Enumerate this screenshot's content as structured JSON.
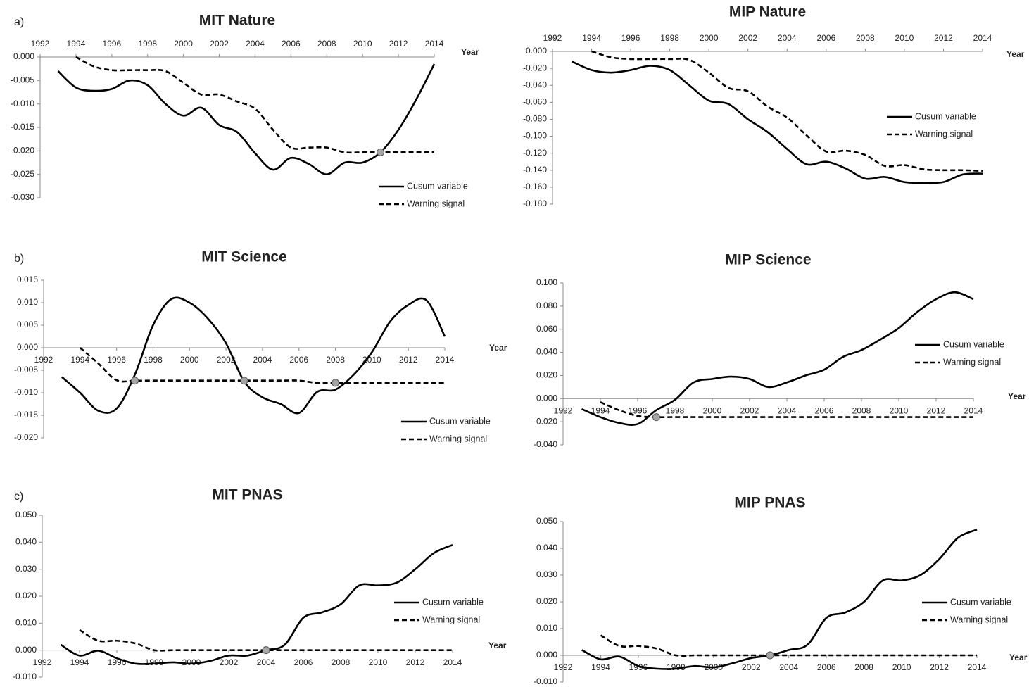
{
  "chart_data": [
    {
      "type": "line",
      "panel_label": "a)",
      "title": "MIT  Nature",
      "x_label": "Year",
      "x": [
        1993,
        1994,
        1995,
        1996,
        1997,
        1998,
        1999,
        2000,
        2001,
        2002,
        2003,
        2004,
        2005,
        2006,
        2007,
        2008,
        2009,
        2010,
        2011,
        2012,
        2013,
        2014
      ],
      "series": [
        {
          "name": "Cusum variable",
          "color": "#000000",
          "linestyle": "solid",
          "values": [
            -0.003,
            -0.0065,
            -0.0072,
            -0.0068,
            -0.005,
            -0.006,
            -0.01,
            -0.0125,
            -0.0108,
            -0.0145,
            -0.016,
            -0.0205,
            -0.024,
            -0.0215,
            -0.0228,
            -0.025,
            -0.0225,
            -0.0225,
            -0.0203,
            -0.0155,
            -0.009,
            -0.0015
          ]
        },
        {
          "name": "Warning signal",
          "color": "#000000",
          "linestyle": "dashed",
          "values": [
            null,
            0.0,
            -0.002,
            -0.0028,
            -0.0028,
            -0.0028,
            -0.003,
            -0.0055,
            -0.008,
            -0.008,
            -0.0095,
            -0.011,
            -0.0155,
            -0.0193,
            -0.0193,
            -0.0193,
            -0.0203,
            -0.0203,
            -0.0203,
            -0.0203,
            -0.0203,
            -0.0203
          ]
        }
      ],
      "markers": {
        "color": "#a6a6a6",
        "x": [
          2011
        ],
        "y": [
          -0.0203
        ]
      },
      "xlim": [
        1992,
        2014
      ],
      "xticks": [
        1992,
        1994,
        1996,
        1998,
        2000,
        2002,
        2004,
        2006,
        2008,
        2010,
        2012,
        2014
      ],
      "ylim": [
        -0.03,
        0
      ],
      "yticks": [
        {
          "value": 0,
          "label": "0.000"
        },
        {
          "value": -0.005,
          "label": "-0.005"
        },
        {
          "value": -0.01,
          "label": "-0.010"
        },
        {
          "value": -0.015,
          "label": "-0.015"
        },
        {
          "value": -0.02,
          "label": "-0.020"
        },
        {
          "value": -0.025,
          "label": "-0.025"
        },
        {
          "value": -0.03,
          "label": "-0.030"
        }
      ]
    },
    {
      "type": "line",
      "title": "MIP Nature",
      "x_label": "Year",
      "x": [
        1993,
        1994,
        1995,
        1996,
        1997,
        1998,
        1999,
        2000,
        2001,
        2002,
        2003,
        2004,
        2005,
        2006,
        2007,
        2008,
        2009,
        2010,
        2011,
        2012,
        2013,
        2014
      ],
      "series": [
        {
          "name": "Cusum variable",
          "color": "#000000",
          "linestyle": "solid",
          "values": [
            -0.012,
            -0.022,
            -0.025,
            -0.022,
            -0.017,
            -0.022,
            -0.04,
            -0.058,
            -0.062,
            -0.08,
            -0.095,
            -0.115,
            -0.133,
            -0.13,
            -0.138,
            -0.15,
            -0.148,
            -0.154,
            -0.155,
            -0.154,
            -0.145,
            -0.144
          ]
        },
        {
          "name": "Warning signal",
          "color": "#000000",
          "linestyle": "dashed",
          "values": [
            null,
            0.0,
            -0.007,
            -0.009,
            -0.009,
            -0.009,
            -0.01,
            -0.025,
            -0.043,
            -0.047,
            -0.065,
            -0.078,
            -0.099,
            -0.118,
            -0.117,
            -0.122,
            -0.135,
            -0.134,
            -0.139,
            -0.14,
            -0.14,
            -0.141
          ]
        }
      ],
      "xlim": [
        1992,
        2014
      ],
      "xticks": [
        1992,
        1994,
        1996,
        1998,
        2000,
        2002,
        2004,
        2006,
        2008,
        2010,
        2012,
        2014
      ],
      "ylim": [
        -0.18,
        0
      ],
      "yticks": [
        {
          "value": 0,
          "label": "0.000"
        },
        {
          "value": -0.02,
          "label": "-0.020"
        },
        {
          "value": -0.04,
          "label": "-0.040"
        },
        {
          "value": -0.06,
          "label": "-0.060"
        },
        {
          "value": -0.08,
          "label": "-0.080"
        },
        {
          "value": -0.1,
          "label": "-0.100"
        },
        {
          "value": -0.12,
          "label": "-0.120"
        },
        {
          "value": -0.14,
          "label": "-0.140"
        },
        {
          "value": -0.16,
          "label": "-0.160"
        },
        {
          "value": -0.18,
          "label": "-0.180"
        }
      ]
    },
    {
      "type": "line",
      "panel_label": "b)",
      "title": "MIT Science",
      "x_label": "Year",
      "x": [
        1993,
        1994,
        1995,
        1996,
        1997,
        1998,
        1999,
        2000,
        2001,
        2002,
        2003,
        2004,
        2005,
        2006,
        2007,
        2008,
        2009,
        2010,
        2011,
        2012,
        2013,
        2014
      ],
      "series": [
        {
          "name": "Cusum variable",
          "color": "#000000",
          "linestyle": "solid",
          "values": [
            -0.0065,
            -0.01,
            -0.014,
            -0.0135,
            -0.006,
            0.005,
            0.0108,
            0.01,
            0.0065,
            0.001,
            -0.0075,
            -0.011,
            -0.0125,
            -0.0145,
            -0.0098,
            -0.0093,
            -0.006,
            -0.001,
            0.0058,
            0.0095,
            0.0105,
            0.0025
          ]
        },
        {
          "name": "Warning signal",
          "color": "#000000",
          "linestyle": "dashed",
          "values": [
            null,
            0.0,
            -0.0035,
            -0.0072,
            -0.0073,
            -0.0073,
            -0.0073,
            -0.0073,
            -0.0073,
            -0.0073,
            -0.0073,
            -0.0073,
            -0.0073,
            -0.0073,
            -0.0078,
            -0.0078,
            -0.0078,
            -0.0078,
            -0.0078,
            -0.0078,
            -0.0078,
            -0.0078
          ]
        }
      ],
      "markers": {
        "color": "#a6a6a6",
        "x": [
          1997,
          2003,
          2008
        ],
        "y": [
          -0.0073,
          -0.0073,
          -0.0078
        ]
      },
      "xlim": [
        1992,
        2014
      ],
      "xticks": [
        1992,
        1994,
        1996,
        1998,
        2000,
        2002,
        2004,
        2006,
        2008,
        2010,
        2012,
        2014
      ],
      "ylim": [
        -0.02,
        0.015
      ],
      "yticks": [
        {
          "value": 0.015,
          "label": "0.015"
        },
        {
          "value": 0.01,
          "label": "0.010"
        },
        {
          "value": 0.005,
          "label": "0.005"
        },
        {
          "value": 0,
          "label": "0.000"
        },
        {
          "value": -0.005,
          "label": "-0.005"
        },
        {
          "value": -0.01,
          "label": "-0.010"
        },
        {
          "value": -0.015,
          "label": "-0.015"
        },
        {
          "value": -0.02,
          "label": "-0.020"
        }
      ]
    },
    {
      "type": "line",
      "title": "MIP Science",
      "x_label": "Year",
      "x": [
        1993,
        1994,
        1995,
        1996,
        1997,
        1998,
        1999,
        2000,
        2001,
        2002,
        2003,
        2004,
        2005,
        2006,
        2007,
        2008,
        2009,
        2010,
        2011,
        2012,
        2013,
        2014
      ],
      "series": [
        {
          "name": "Cusum variable",
          "color": "#000000",
          "linestyle": "solid",
          "values": [
            -0.009,
            -0.016,
            -0.021,
            -0.022,
            -0.01,
            -0.001,
            0.014,
            0.017,
            0.019,
            0.017,
            0.01,
            0.014,
            0.02,
            0.025,
            0.036,
            0.042,
            0.051,
            0.061,
            0.075,
            0.086,
            0.092,
            0.086
          ]
        },
        {
          "name": "Warning signal",
          "color": "#000000",
          "linestyle": "dashed",
          "values": [
            null,
            -0.003,
            -0.01,
            -0.015,
            -0.016,
            -0.016,
            -0.016,
            -0.016,
            -0.016,
            -0.016,
            -0.016,
            -0.016,
            -0.016,
            -0.016,
            -0.016,
            -0.016,
            -0.016,
            -0.016,
            -0.016,
            -0.016,
            -0.016,
            -0.016
          ]
        }
      ],
      "markers": {
        "color": "#a6a6a6",
        "x": [
          1997
        ],
        "y": [
          -0.016
        ]
      },
      "xlim": [
        1992,
        2014
      ],
      "xticks": [
        1992,
        1994,
        1996,
        1998,
        2000,
        2002,
        2004,
        2006,
        2008,
        2010,
        2012,
        2014
      ],
      "ylim": [
        -0.04,
        0.1
      ],
      "yticks": [
        {
          "value": 0.1,
          "label": "0.100"
        },
        {
          "value": 0.08,
          "label": "0.080"
        },
        {
          "value": 0.06,
          "label": "0.060"
        },
        {
          "value": 0.04,
          "label": "0.040"
        },
        {
          "value": 0.02,
          "label": "0.020"
        },
        {
          "value": 0,
          "label": "0.000"
        },
        {
          "value": -0.02,
          "label": "-0.020"
        },
        {
          "value": -0.04,
          "label": "-0.040"
        }
      ]
    },
    {
      "type": "line",
      "panel_label": "c)",
      "title": "MIT PNAS",
      "x_label": "Year",
      "x": [
        1993,
        1994,
        1995,
        1996,
        1997,
        1998,
        1999,
        2000,
        2001,
        2002,
        2003,
        2004,
        2005,
        2006,
        2007,
        2008,
        2009,
        2010,
        2011,
        2012,
        2013,
        2014
      ],
      "series": [
        {
          "name": "Cusum variable",
          "color": "#000000",
          "linestyle": "solid",
          "values": [
            0.002,
            -0.002,
            -0.0002,
            -0.003,
            -0.005,
            -0.005,
            -0.0045,
            -0.005,
            -0.004,
            -0.002,
            -0.002,
            0.0,
            0.002,
            0.012,
            0.014,
            0.017,
            0.024,
            0.024,
            0.025,
            0.03,
            0.036,
            0.039
          ]
        },
        {
          "name": "Warning signal",
          "color": "#000000",
          "linestyle": "dashed",
          "values": [
            null,
            0.0075,
            0.0035,
            0.0035,
            0.0025,
            0.0,
            0.0,
            0.0,
            0.0,
            0.0,
            0.0,
            0.0,
            0.0,
            0.0,
            0.0,
            0.0,
            0.0,
            0.0,
            0.0,
            0.0,
            0.0,
            0.0
          ]
        }
      ],
      "markers": {
        "color": "#a6a6a6",
        "x": [
          2004
        ],
        "y": [
          0
        ]
      },
      "xlim": [
        1992,
        2014
      ],
      "xticks": [
        1992,
        1994,
        1996,
        1998,
        2000,
        2002,
        2004,
        2006,
        2008,
        2010,
        2012,
        2014
      ],
      "ylim": [
        -0.01,
        0.05
      ],
      "yticks": [
        {
          "value": 0.05,
          "label": "0.050"
        },
        {
          "value": 0.04,
          "label": "0.040"
        },
        {
          "value": 0.03,
          "label": "0.030"
        },
        {
          "value": 0.02,
          "label": "0.020"
        },
        {
          "value": 0.01,
          "label": "0.010"
        },
        {
          "value": 0,
          "label": "0.000"
        },
        {
          "value": -0.01,
          "label": "-0.010"
        }
      ]
    },
    {
      "type": "line",
      "title": "MIP PNAS",
      "x_label": "Year",
      "x": [
        1993,
        1994,
        1995,
        1996,
        1997,
        1998,
        1999,
        2000,
        2001,
        2002,
        2003,
        2004,
        2005,
        2006,
        2007,
        2008,
        2009,
        2010,
        2011,
        2012,
        2013,
        2014
      ],
      "series": [
        {
          "name": "Cusum variable",
          "color": "#000000",
          "linestyle": "solid",
          "values": [
            0.002,
            -0.0015,
            -0.0005,
            -0.004,
            -0.005,
            -0.005,
            -0.004,
            -0.0045,
            -0.003,
            -0.001,
            0.0,
            0.002,
            0.004,
            0.014,
            0.016,
            0.02,
            0.028,
            0.028,
            0.03,
            0.036,
            0.044,
            0.047
          ]
        },
        {
          "name": "Warning signal",
          "color": "#000000",
          "linestyle": "dashed",
          "values": [
            null,
            0.0075,
            0.0035,
            0.0035,
            0.0025,
            0.0,
            0.0,
            0.0,
            0.0,
            0.0,
            0.0,
            0.0,
            0.0,
            0.0,
            0.0,
            0.0,
            0.0,
            0.0,
            0.0,
            0.0,
            0.0,
            0.0
          ]
        }
      ],
      "markers": {
        "color": "#a6a6a6",
        "x": [
          2003
        ],
        "y": [
          0
        ]
      },
      "xlim": [
        1992,
        2014
      ],
      "xticks": [
        1992,
        1994,
        1996,
        1998,
        2000,
        2002,
        2004,
        2006,
        2008,
        2010,
        2012,
        2014
      ],
      "ylim": [
        -0.01,
        0.05
      ],
      "yticks": [
        {
          "value": 0.05,
          "label": "0.050"
        },
        {
          "value": 0.04,
          "label": "0.040"
        },
        {
          "value": 0.03,
          "label": "0.030"
        },
        {
          "value": 0.02,
          "label": "0.020"
        },
        {
          "value": 0.01,
          "label": "0.010"
        },
        {
          "value": 0,
          "label": "0.000"
        },
        {
          "value": -0.01,
          "label": "-0.010"
        }
      ]
    }
  ]
}
